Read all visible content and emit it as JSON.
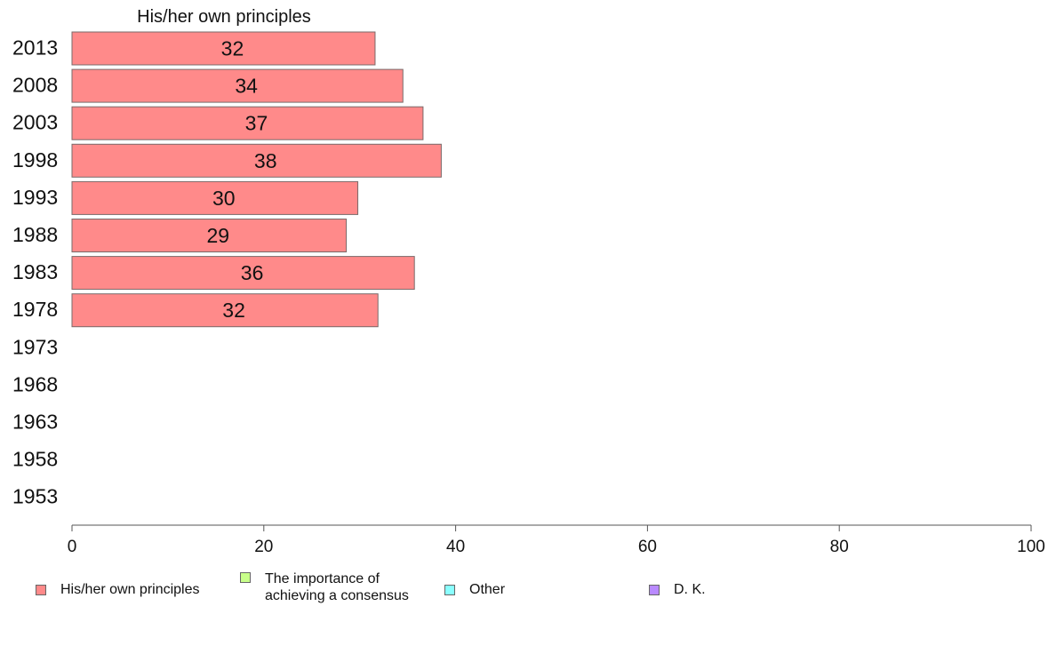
{
  "chart_data": {
    "type": "bar",
    "orientation": "horizontal",
    "title": "His/her own principles",
    "categories": [
      "2013",
      "2008",
      "2003",
      "1998",
      "1993",
      "1988",
      "1983",
      "1978",
      "1973",
      "1968",
      "1963",
      "1958",
      "1953"
    ],
    "series": [
      {
        "name": "His/her own principles",
        "color": "#ff8a8a",
        "values": [
          31.6,
          34.5,
          36.6,
          38.5,
          29.8,
          28.6,
          35.7,
          31.9,
          null,
          null,
          null,
          null,
          null
        ],
        "labels": [
          "32",
          "34",
          "37",
          "38",
          "30",
          "29",
          "36",
          "32",
          "",
          "",
          "",
          "",
          ""
        ]
      }
    ],
    "xlim": [
      0,
      100
    ],
    "xticks": [
      0,
      20,
      40,
      60,
      80,
      100
    ],
    "grid": false,
    "legend_position": "bottom"
  },
  "legend": [
    {
      "label": "His/her own principles",
      "color": "#ff8a8a"
    },
    {
      "label": "The importance of\nachieving a consensus",
      "color": "#c8ff8a"
    },
    {
      "label": "Other",
      "color": "#8affff"
    },
    {
      "label": "D. K.",
      "color": "#b98aff"
    }
  ]
}
